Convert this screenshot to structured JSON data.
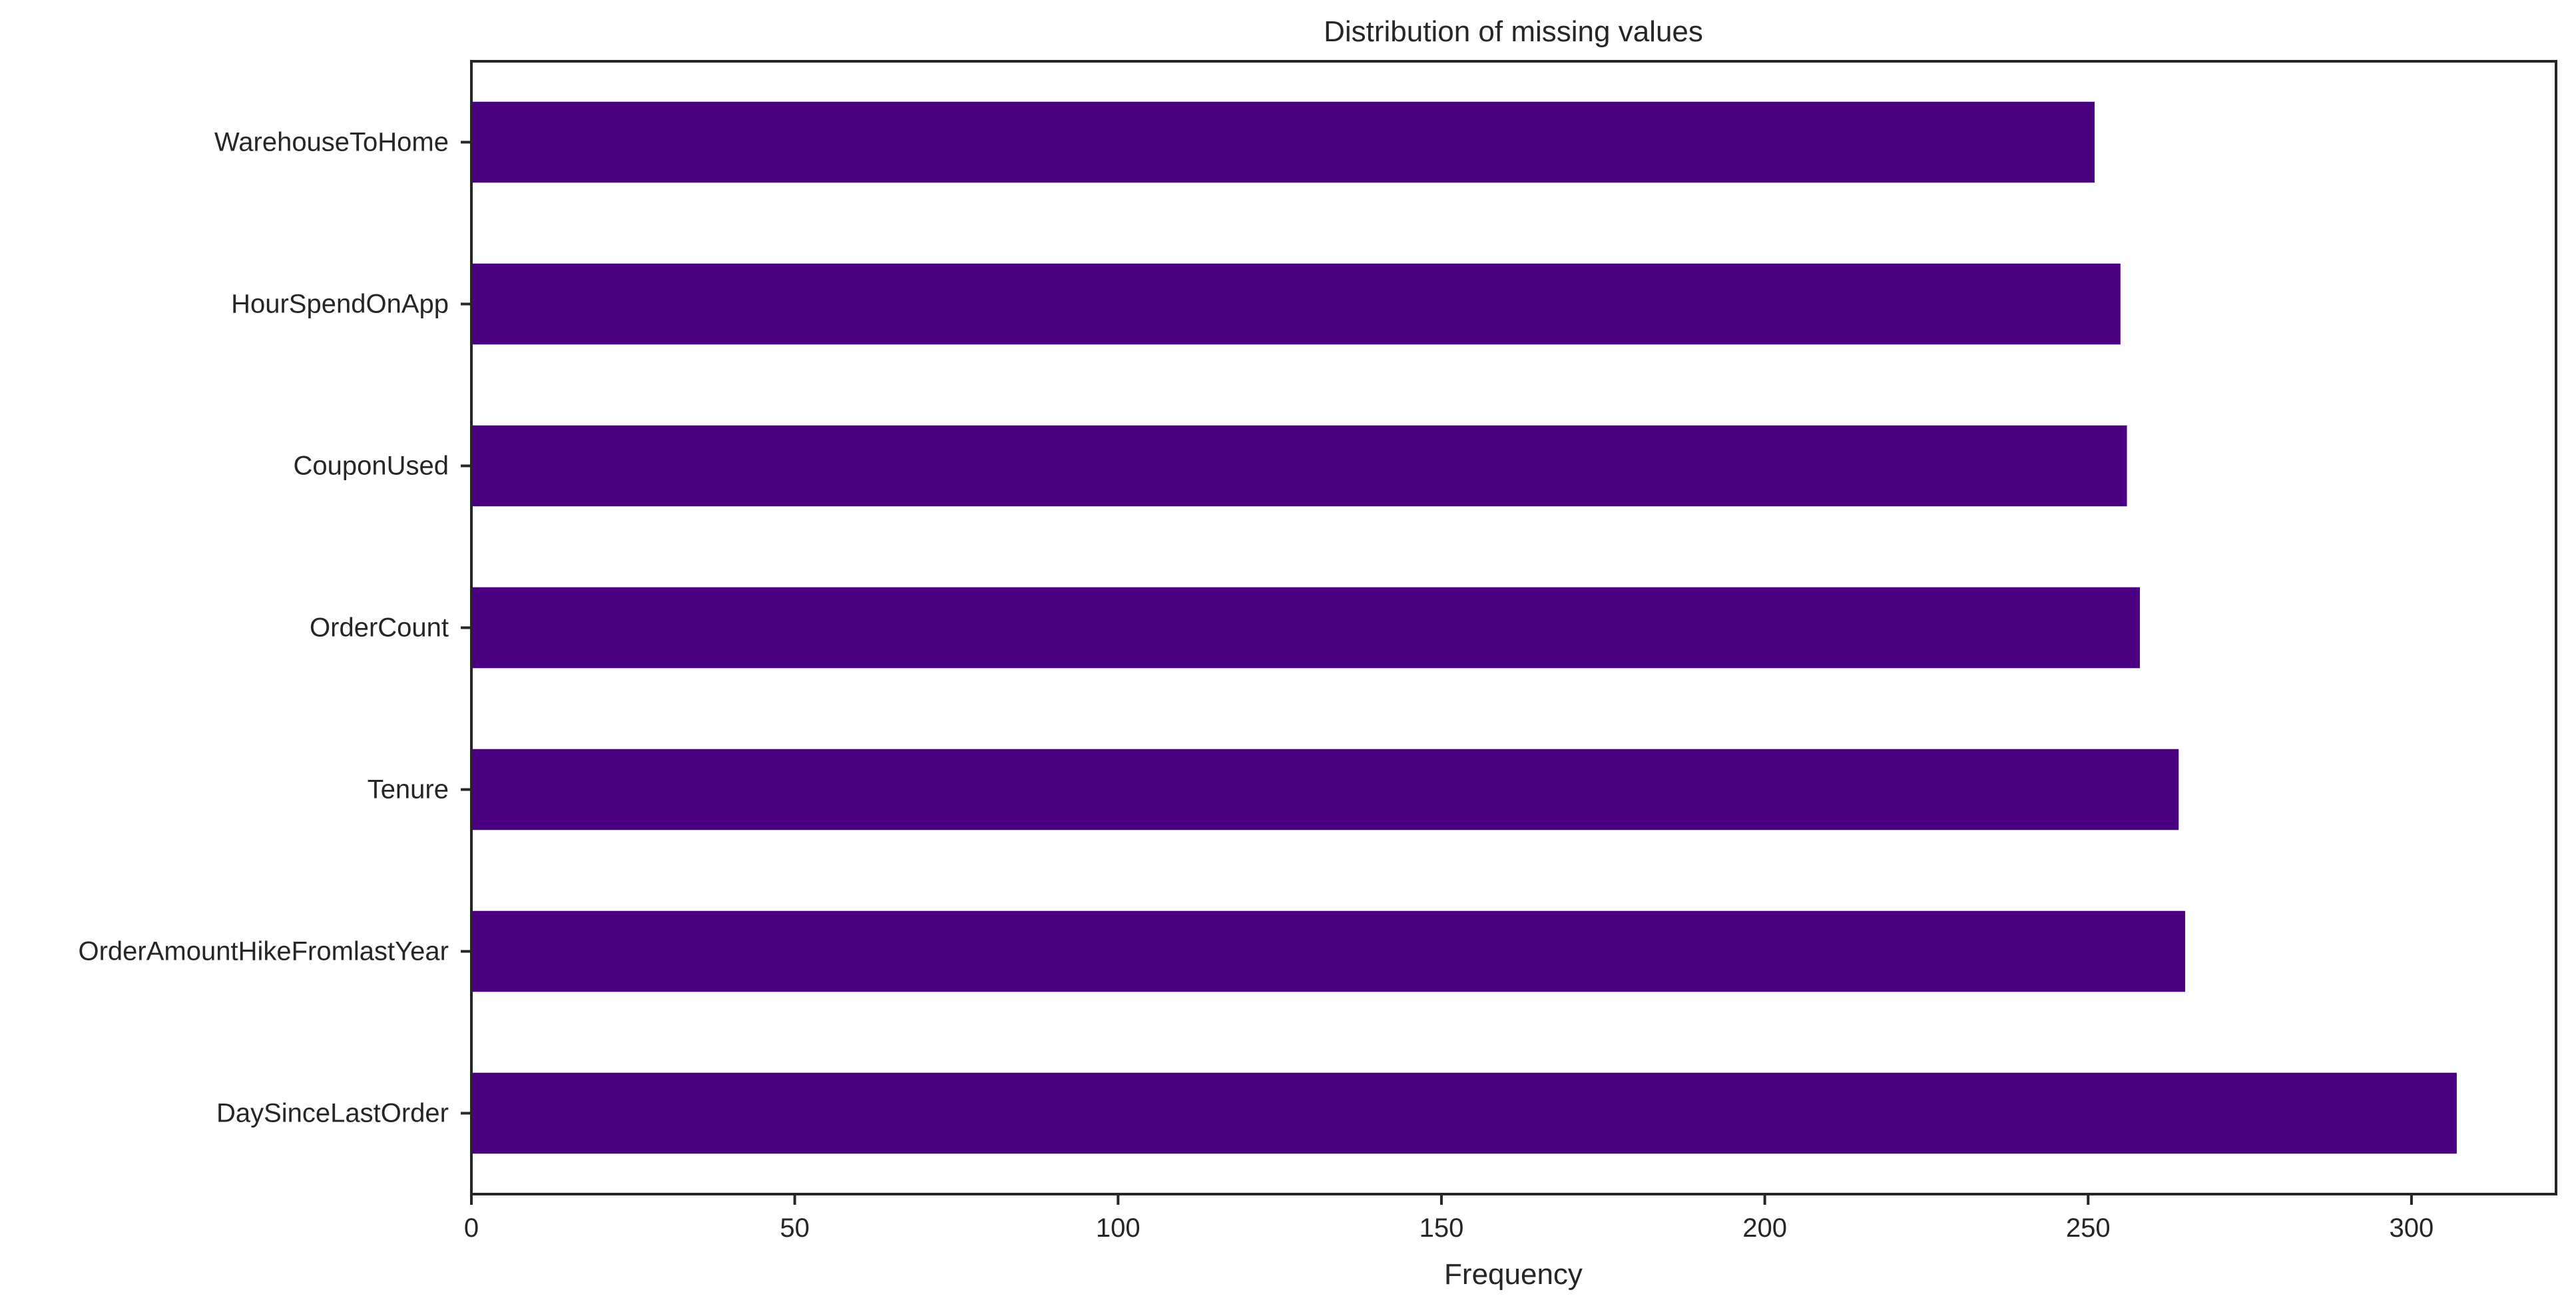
{
  "chart_data": {
    "type": "bar",
    "orientation": "horizontal",
    "title": "Distribution of missing values",
    "xlabel": "Frequency",
    "ylabel": "",
    "categories": [
      "WarehouseToHome",
      "HourSpendOnApp",
      "CouponUsed",
      "OrderCount",
      "Tenure",
      "OrderAmountHikeFromlastYear",
      "DaySinceLastOrder"
    ],
    "values": [
      251,
      255,
      256,
      258,
      264,
      265,
      307
    ],
    "xlim": [
      0,
      322.35
    ],
    "xticks": [
      0,
      50,
      100,
      150,
      200,
      250,
      300
    ],
    "grid": false,
    "legend": "none",
    "bar_color": "#4b0082",
    "axis_color": "#262626"
  }
}
